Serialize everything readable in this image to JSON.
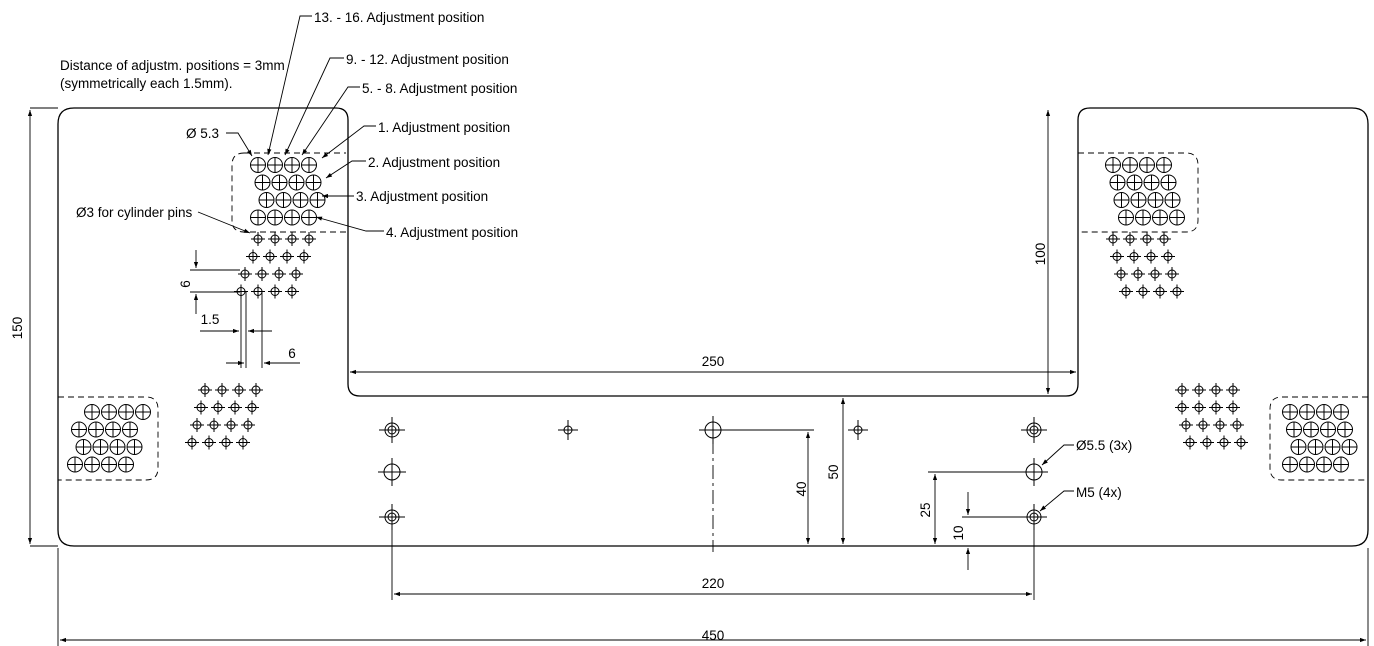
{
  "drawing": {
    "callouts": {
      "pos_13_16": "13. - 16. Adjustment position",
      "pos_9_12": "9. - 12. Adjustment position",
      "pos_5_8": "5. - 8. Adjustment position",
      "pos_1": "1. Adjustment position",
      "pos_2": "2. Adjustment position",
      "pos_3": "3. Adjustment position",
      "pos_4": "4. Adjustment position",
      "distance_note_line1": "Distance of adjustm. positions = 3mm",
      "distance_note_line2": "(symmetrically each 1.5mm).",
      "dia_53": "Ø 5.3",
      "dia_3_pins": "Ø3 for cylinder pins",
      "dia_55": "Ø5.5 (3x)",
      "m5": "M5 (4x)"
    },
    "dimensions": {
      "d150": "150",
      "d100": "100",
      "d250": "250",
      "d6_vertical": "6",
      "d1_5": "1.5",
      "d6_horizontal": "6",
      "d40": "40",
      "d50": "50",
      "d25": "25",
      "d10": "10",
      "d220": "220",
      "d450": "450"
    }
  }
}
